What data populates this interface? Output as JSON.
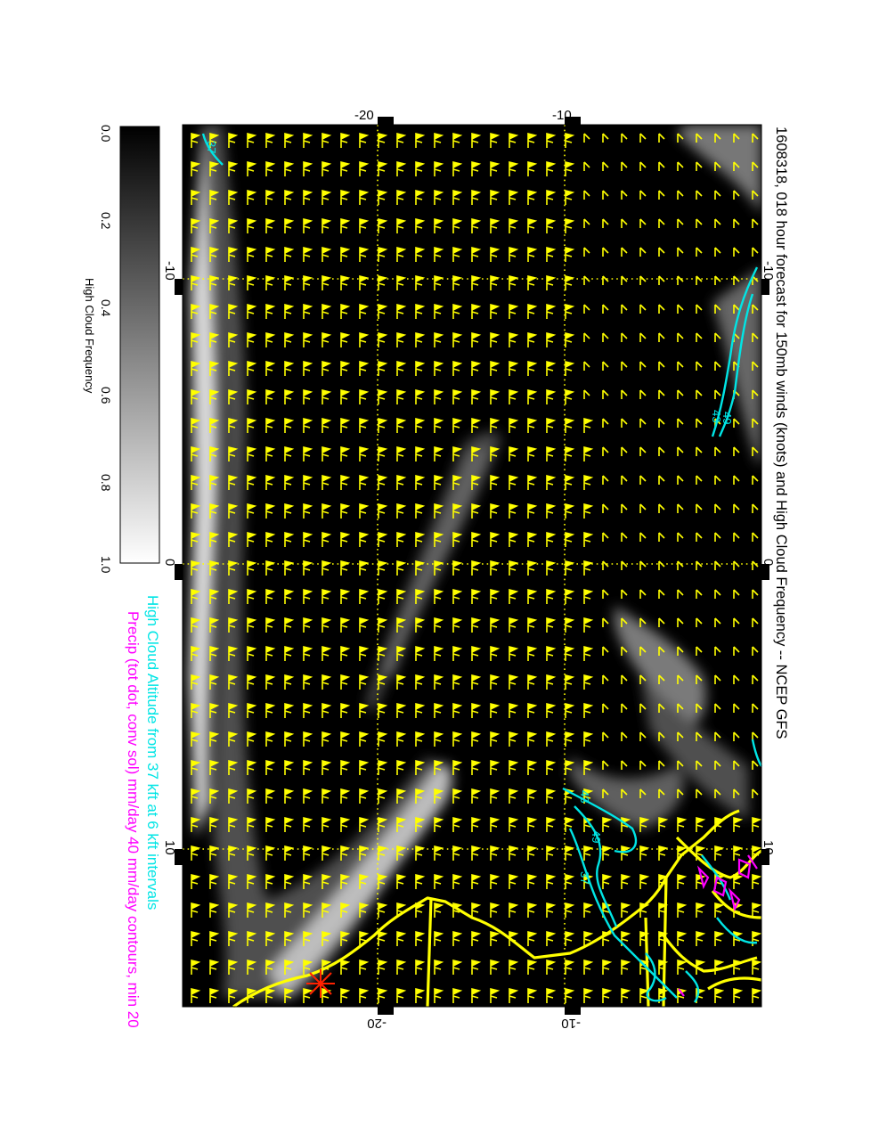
{
  "title": "1608318, 018 hour forecast for 150mb winds (knots) and High Cloud Frequency -- NCEP GFS",
  "legend_cloud_altitude": "High Cloud Altitude from 37 kft at 6 kft intervals",
  "legend_precip": "Precip (tot dot, conv sol) mm/day 40 mm/day contours, min 20",
  "colorbar": {
    "label": "High Cloud Frequency",
    "ticks": [
      "0.0",
      "0.2",
      "0.4",
      "0.6",
      "0.8",
      "1.0"
    ]
  },
  "map": {
    "top_axis_ticks": [
      "-20",
      "-10"
    ],
    "bottom_axis_ticks": [
      "-20",
      "-10"
    ],
    "left_axis_ticks": [
      "-10",
      "0",
      "10"
    ],
    "right_axis_ticks": [
      "-10",
      "0",
      "10"
    ],
    "contour_labels": [
      "37",
      "43",
      "49",
      "37",
      "43",
      "49"
    ]
  },
  "colors": {
    "wind_barbs": "#ffff00",
    "coastline": "#ffff00",
    "cloud_altitude_contours": "#00e5e5",
    "precip_contours": "#ff00ff",
    "field_background": "#000000",
    "marker": "#ff2200"
  }
}
